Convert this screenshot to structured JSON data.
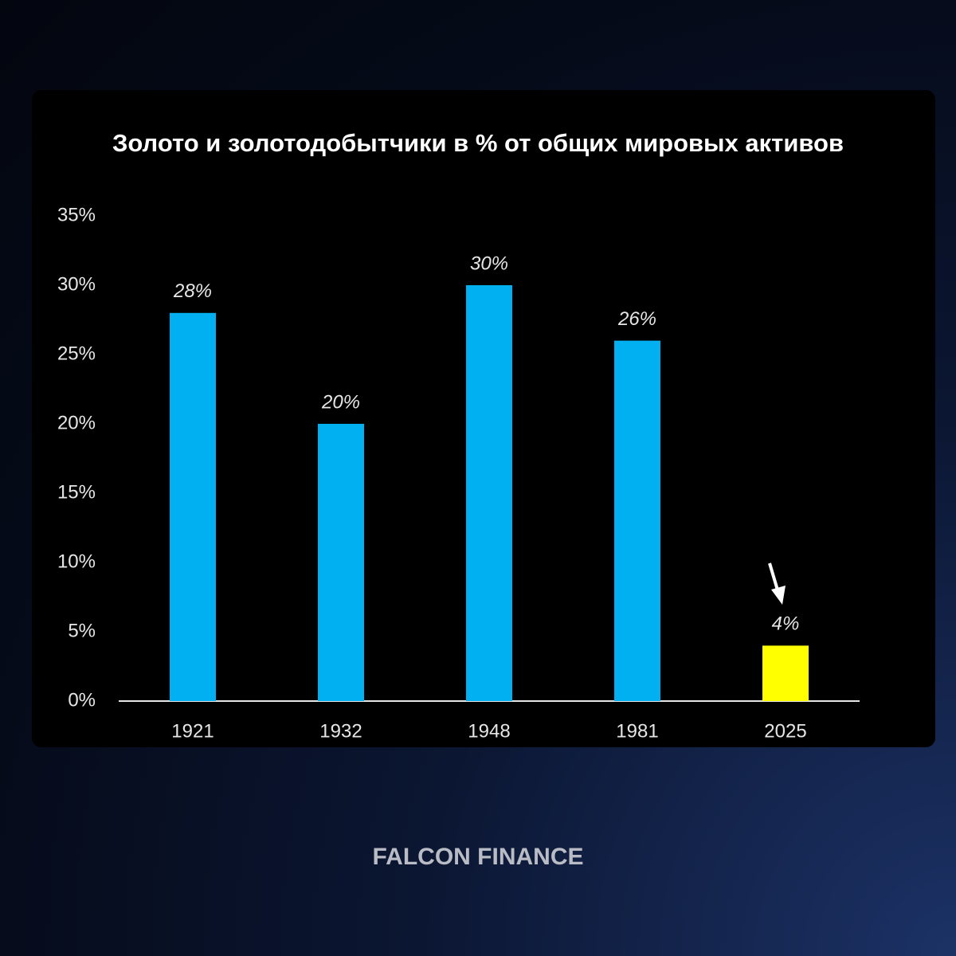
{
  "chart_data": {
    "type": "bar",
    "title": "Золото и золотодобытчики в % от общих мировых активов",
    "categories": [
      "1921",
      "1932",
      "1948",
      "1981",
      "2025"
    ],
    "values": [
      28,
      20,
      30,
      26,
      4
    ],
    "value_labels": [
      "28%",
      "20%",
      "30%",
      "26%",
      "4%"
    ],
    "colors": [
      "#00b0f0",
      "#00b0f0",
      "#00b0f0",
      "#00b0f0",
      "#ffff00"
    ],
    "ylim": [
      0,
      35
    ],
    "yticks": [
      {
        "value": 0,
        "label": "0%"
      },
      {
        "value": 5,
        "label": "5%"
      },
      {
        "value": 10,
        "label": "10%"
      },
      {
        "value": 15,
        "label": "15%"
      },
      {
        "value": 20,
        "label": "20%"
      },
      {
        "value": 25,
        "label": "25%"
      },
      {
        "value": 30,
        "label": "30%"
      },
      {
        "value": 35,
        "label": "35%"
      }
    ],
    "grid": false
  },
  "footer": "FALCON FINANCE"
}
